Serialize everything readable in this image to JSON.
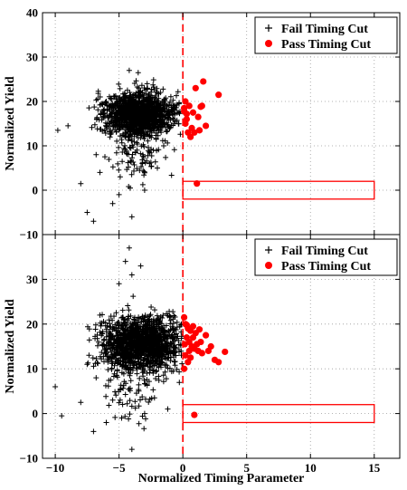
{
  "chart_data": [
    {
      "type": "scatter",
      "xlabel": "",
      "ylabel": "Normalized Yield",
      "xlim": [
        -11,
        17
      ],
      "ylim": [
        -10,
        40
      ],
      "xticks": [
        -10,
        -5,
        0,
        5,
        10,
        15
      ],
      "yticks": [
        -10,
        0,
        10,
        20,
        30,
        40
      ],
      "yticklabels": [
        "−10",
        "0",
        "10",
        "20",
        "30",
        "40"
      ],
      "grid": true,
      "legend": "top-right",
      "cut_line_x": 0,
      "signal_box": {
        "x": [
          0,
          15
        ],
        "y": [
          -2,
          2
        ]
      },
      "series": [
        {
          "name": "Fail Timing Cut",
          "marker": "+",
          "color": "#000000",
          "cluster": {
            "x_center": -3.5,
            "x_sd": 1.4,
            "x_min": -7.5,
            "x_max": -0.05,
            "y_center": 17,
            "y_sd": 2.6,
            "n": 1300
          },
          "tail": {
            "x_center": -3.5,
            "x_sd": 0.9,
            "y_center": 7,
            "y_sd": 2.5,
            "n": 70
          },
          "outliers": [
            [
              -8,
              1.5
            ],
            [
              -9.8,
              13.5
            ],
            [
              -7.5,
              -5
            ],
            [
              -7,
              -7
            ],
            [
              -5.5,
              -3
            ],
            [
              -4,
              -6
            ],
            [
              -3.5,
              26.5
            ],
            [
              -4.2,
              27
            ],
            [
              -2.8,
              24
            ],
            [
              -6,
              20
            ],
            [
              -9,
              14.5
            ],
            [
              -6.5,
              4
            ],
            [
              -5,
              -1
            ],
            [
              -3,
              0
            ],
            [
              -6.8,
              8
            ],
            [
              -1.5,
              10
            ],
            [
              -2,
              5
            ]
          ]
        },
        {
          "name": "Pass Timing Cut",
          "marker": "o",
          "color": "#ff0000",
          "points": [
            [
              0.1,
              18.5
            ],
            [
              0.3,
              17.2
            ],
            [
              0.5,
              19
            ],
            [
              0.2,
              15
            ],
            [
              0.4,
              13
            ],
            [
              0.6,
              12
            ],
            [
              0.3,
              16
            ],
            [
              0.8,
              17.5
            ],
            [
              1.2,
              16.5
            ],
            [
              1.5,
              19
            ],
            [
              1.6,
              24.5
            ],
            [
              1.0,
              23
            ],
            [
              1.3,
              13.5
            ],
            [
              1.8,
              14.5
            ],
            [
              2.8,
              21.5
            ],
            [
              1.4,
              18.8
            ],
            [
              0.2,
              20
            ],
            [
              0.7,
              14
            ],
            [
              0.1,
              17.8
            ],
            [
              0.9,
              13
            ],
            [
              1.1,
              1.5
            ]
          ]
        }
      ]
    },
    {
      "type": "scatter",
      "xlabel": "Normalized Timing Parameter",
      "ylabel": "Normalized Yield",
      "xlim": [
        -11,
        17
      ],
      "ylim": [
        -10,
        40
      ],
      "xticks": [
        -10,
        -5,
        0,
        5,
        10,
        15
      ],
      "xticklabels": [
        "−10",
        "−5",
        "0",
        "5",
        "10",
        "15"
      ],
      "yticks": [
        -10,
        0,
        10,
        20,
        30
      ],
      "yticklabels": [
        "−10",
        "0",
        "10",
        "20",
        "30"
      ],
      "grid": true,
      "legend": "top-right",
      "cut_line_x": 0,
      "signal_box": {
        "x": [
          0,
          15
        ],
        "y": [
          -2,
          2
        ]
      },
      "series": [
        {
          "name": "Fail Timing Cut",
          "marker": "+",
          "color": "#000000",
          "cluster": {
            "x_center": -3.3,
            "x_sd": 1.5,
            "x_min": -7.5,
            "x_max": -0.05,
            "y_center": 15.5,
            "y_sd": 3.0,
            "n": 1400
          },
          "tail": {
            "x_center": -4.0,
            "x_sd": 1.3,
            "y_center": 4,
            "y_sd": 3.0,
            "n": 60
          },
          "outliers": [
            [
              -10,
              6
            ],
            [
              -9.5,
              -0.5
            ],
            [
              -8,
              2.5
            ],
            [
              -7,
              -4
            ],
            [
              -6,
              -2
            ],
            [
              -4,
              -8
            ],
            [
              -3,
              0
            ],
            [
              -4.2,
              37
            ],
            [
              -4.5,
              34
            ],
            [
              -3.3,
              33
            ],
            [
              -4,
              31
            ],
            [
              -5,
              29
            ],
            [
              -6.5,
              22
            ],
            [
              -7.5,
              11
            ],
            [
              -6.8,
              8
            ],
            [
              -5.5,
              3
            ],
            [
              -4.8,
              -1
            ]
          ]
        },
        {
          "name": "Pass Timing Cut",
          "marker": "o",
          "color": "#ff0000",
          "points": [
            [
              0.1,
              21.5
            ],
            [
              0.2,
              20
            ],
            [
              0.4,
              19
            ],
            [
              0.6,
              18.5
            ],
            [
              0.8,
              19.5
            ],
            [
              1.0,
              18
            ],
            [
              0.3,
              17
            ],
            [
              0.5,
              16
            ],
            [
              0.7,
              15
            ],
            [
              0.9,
              14.5
            ],
            [
              1.2,
              14
            ],
            [
              1.5,
              13.5
            ],
            [
              2.0,
              14
            ],
            [
              2.5,
              12
            ],
            [
              2.8,
              11.5
            ],
            [
              3.3,
              13.8
            ],
            [
              1.8,
              17.5
            ],
            [
              1.4,
              16
            ],
            [
              0.2,
              13
            ],
            [
              0.4,
              11.5
            ],
            [
              0.1,
              10
            ],
            [
              0.6,
              12.5
            ],
            [
              1.1,
              15.5
            ],
            [
              0.3,
              19.8
            ],
            [
              0.15,
              15.5
            ],
            [
              0.8,
              17
            ],
            [
              1.3,
              18.8
            ],
            [
              0.5,
              14
            ],
            [
              2.2,
              15
            ],
            [
              0.9,
              -0.3
            ]
          ]
        }
      ]
    }
  ]
}
